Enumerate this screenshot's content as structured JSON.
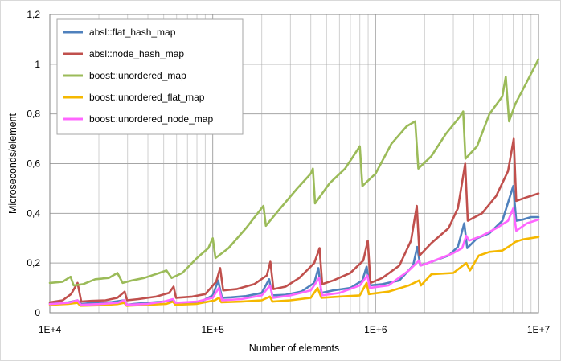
{
  "chart_data": {
    "type": "line",
    "title": "",
    "xlabel": "Number of elements",
    "ylabel": "Microseconds/element",
    "xscale": "log",
    "xlim": [
      10000,
      10000000
    ],
    "ylim": [
      0,
      1.2
    ],
    "x_ticks": [
      10000,
      100000,
      1000000,
      10000000
    ],
    "x_tick_labels": [
      "1E+4",
      "1E+5",
      "1E+6",
      "1E+7"
    ],
    "y_ticks": [
      0,
      0.2,
      0.4,
      0.6,
      0.8,
      1.0,
      1.2
    ],
    "y_tick_labels": [
      "0",
      "0,2",
      "0,4",
      "0,6",
      "0,8",
      "1",
      "1,2"
    ],
    "grid": {
      "major_y": true,
      "major_x": true,
      "minor_x": true
    },
    "legend_position": "top-left",
    "series": [
      {
        "name": "absl::flat_hash_map",
        "color": "#4F81BD",
        "points": [
          [
            10000,
            0.038
          ],
          [
            13000,
            0.042
          ],
          [
            14800,
            0.05
          ],
          [
            15600,
            0.035
          ],
          [
            17000,
            0.038
          ],
          [
            20000,
            0.04
          ],
          [
            24000,
            0.043
          ],
          [
            28500,
            0.05
          ],
          [
            29800,
            0.032
          ],
          [
            33000,
            0.036
          ],
          [
            40000,
            0.04
          ],
          [
            50000,
            0.045
          ],
          [
            56000,
            0.05
          ],
          [
            59000,
            0.038
          ],
          [
            70000,
            0.04
          ],
          [
            85000,
            0.045
          ],
          [
            100000,
            0.07
          ],
          [
            108000,
            0.13
          ],
          [
            114000,
            0.06
          ],
          [
            130000,
            0.062
          ],
          [
            160000,
            0.067
          ],
          [
            200000,
            0.08
          ],
          [
            222000,
            0.135
          ],
          [
            232000,
            0.07
          ],
          [
            280000,
            0.072
          ],
          [
            350000,
            0.085
          ],
          [
            420000,
            0.12
          ],
          [
            445000,
            0.18
          ],
          [
            465000,
            0.08
          ],
          [
            550000,
            0.09
          ],
          [
            700000,
            0.1
          ],
          [
            830000,
            0.13
          ],
          [
            880000,
            0.185
          ],
          [
            920000,
            0.11
          ],
          [
            1100000,
            0.115
          ],
          [
            1400000,
            0.13
          ],
          [
            1700000,
            0.19
          ],
          [
            1800000,
            0.265
          ],
          [
            1880000,
            0.19
          ],
          [
            2200000,
            0.205
          ],
          [
            2800000,
            0.23
          ],
          [
            3200000,
            0.265
          ],
          [
            3500000,
            0.36
          ],
          [
            3650000,
            0.26
          ],
          [
            4200000,
            0.3
          ],
          [
            5000000,
            0.32
          ],
          [
            6000000,
            0.37
          ],
          [
            7000000,
            0.51
          ],
          [
            7300000,
            0.37
          ],
          [
            8000000,
            0.375
          ],
          [
            9000000,
            0.385
          ],
          [
            10000000,
            0.385
          ]
        ]
      },
      {
        "name": "absl::node_hash_map",
        "color": "#C0504D",
        "points": [
          [
            10000,
            0.042
          ],
          [
            12000,
            0.05
          ],
          [
            13500,
            0.075
          ],
          [
            14800,
            0.12
          ],
          [
            15600,
            0.045
          ],
          [
            18000,
            0.048
          ],
          [
            22000,
            0.05
          ],
          [
            26000,
            0.06
          ],
          [
            28800,
            0.085
          ],
          [
            29800,
            0.05
          ],
          [
            35000,
            0.055
          ],
          [
            45000,
            0.065
          ],
          [
            54000,
            0.08
          ],
          [
            57500,
            0.105
          ],
          [
            59500,
            0.06
          ],
          [
            75000,
            0.065
          ],
          [
            90000,
            0.075
          ],
          [
            105000,
            0.125
          ],
          [
            111000,
            0.18
          ],
          [
            116000,
            0.09
          ],
          [
            140000,
            0.095
          ],
          [
            180000,
            0.115
          ],
          [
            215000,
            0.15
          ],
          [
            226000,
            0.205
          ],
          [
            236000,
            0.095
          ],
          [
            280000,
            0.105
          ],
          [
            340000,
            0.14
          ],
          [
            420000,
            0.2
          ],
          [
            453000,
            0.26
          ],
          [
            470000,
            0.115
          ],
          [
            550000,
            0.13
          ],
          [
            700000,
            0.16
          ],
          [
            840000,
            0.21
          ],
          [
            895000,
            0.29
          ],
          [
            930000,
            0.12
          ],
          [
            1100000,
            0.14
          ],
          [
            1400000,
            0.19
          ],
          [
            1650000,
            0.29
          ],
          [
            1790000,
            0.43
          ],
          [
            1860000,
            0.23
          ],
          [
            2200000,
            0.28
          ],
          [
            2800000,
            0.34
          ],
          [
            3200000,
            0.42
          ],
          [
            3550000,
            0.6
          ],
          [
            3680000,
            0.37
          ],
          [
            4500000,
            0.4
          ],
          [
            5500000,
            0.47
          ],
          [
            6500000,
            0.57
          ],
          [
            7050000,
            0.7
          ],
          [
            7300000,
            0.45
          ],
          [
            8500000,
            0.465
          ],
          [
            10000000,
            0.48
          ]
        ]
      },
      {
        "name": "boost::unordered_map",
        "color": "#9BBB59",
        "points": [
          [
            10000,
            0.12
          ],
          [
            12000,
            0.125
          ],
          [
            13400,
            0.145
          ],
          [
            14000,
            0.11
          ],
          [
            16000,
            0.115
          ],
          [
            19000,
            0.135
          ],
          [
            23000,
            0.14
          ],
          [
            26000,
            0.16
          ],
          [
            28000,
            0.12
          ],
          [
            32000,
            0.13
          ],
          [
            38000,
            0.14
          ],
          [
            47000,
            0.16
          ],
          [
            52000,
            0.17
          ],
          [
            56000,
            0.14
          ],
          [
            65000,
            0.16
          ],
          [
            80000,
            0.22
          ],
          [
            94000,
            0.26
          ],
          [
            100000,
            0.3
          ],
          [
            104000,
            0.22
          ],
          [
            125000,
            0.26
          ],
          [
            160000,
            0.34
          ],
          [
            205000,
            0.43
          ],
          [
            212000,
            0.35
          ],
          [
            260000,
            0.42
          ],
          [
            330000,
            0.5
          ],
          [
            400000,
            0.56
          ],
          [
            412000,
            0.58
          ],
          [
            425000,
            0.44
          ],
          [
            520000,
            0.52
          ],
          [
            650000,
            0.58
          ],
          [
            800000,
            0.67
          ],
          [
            830000,
            0.51
          ],
          [
            1000000,
            0.56
          ],
          [
            1250000,
            0.68
          ],
          [
            1550000,
            0.75
          ],
          [
            1750000,
            0.77
          ],
          [
            1830000,
            0.58
          ],
          [
            2200000,
            0.63
          ],
          [
            2700000,
            0.72
          ],
          [
            3300000,
            0.79
          ],
          [
            3450000,
            0.81
          ],
          [
            3560000,
            0.62
          ],
          [
            4200000,
            0.67
          ],
          [
            5000000,
            0.8
          ],
          [
            6000000,
            0.87
          ],
          [
            6300000,
            0.95
          ],
          [
            6600000,
            0.77
          ],
          [
            7200000,
            0.84
          ],
          [
            8200000,
            0.91
          ],
          [
            10000000,
            1.02
          ]
        ]
      },
      {
        "name": "boost::unordered_flat_map",
        "color": "#F5B800",
        "points": [
          [
            10000,
            0.032
          ],
          [
            13000,
            0.036
          ],
          [
            14800,
            0.04
          ],
          [
            15400,
            0.028
          ],
          [
            20000,
            0.03
          ],
          [
            26000,
            0.035
          ],
          [
            28600,
            0.04
          ],
          [
            29600,
            0.028
          ],
          [
            40000,
            0.032
          ],
          [
            52000,
            0.036
          ],
          [
            57000,
            0.045
          ],
          [
            59000,
            0.032
          ],
          [
            80000,
            0.036
          ],
          [
            103000,
            0.05
          ],
          [
            109000,
            0.06
          ],
          [
            113000,
            0.042
          ],
          [
            150000,
            0.045
          ],
          [
            200000,
            0.05
          ],
          [
            224000,
            0.065
          ],
          [
            233000,
            0.045
          ],
          [
            300000,
            0.05
          ],
          [
            400000,
            0.06
          ],
          [
            440000,
            0.1
          ],
          [
            465000,
            0.06
          ],
          [
            600000,
            0.065
          ],
          [
            800000,
            0.07
          ],
          [
            880000,
            0.12
          ],
          [
            910000,
            0.075
          ],
          [
            1200000,
            0.085
          ],
          [
            1600000,
            0.11
          ],
          [
            1850000,
            0.13
          ],
          [
            1900000,
            0.11
          ],
          [
            2200000,
            0.155
          ],
          [
            3000000,
            0.16
          ],
          [
            3600000,
            0.2
          ],
          [
            3800000,
            0.17
          ],
          [
            4300000,
            0.23
          ],
          [
            5000000,
            0.245
          ],
          [
            6000000,
            0.25
          ],
          [
            6700000,
            0.27
          ],
          [
            7200000,
            0.285
          ],
          [
            8000000,
            0.295
          ],
          [
            10000000,
            0.305
          ]
        ]
      },
      {
        "name": "boost::unordered_node_map",
        "color": "#FF66FF",
        "points": [
          [
            10000,
            0.035
          ],
          [
            13000,
            0.04
          ],
          [
            14800,
            0.05
          ],
          [
            15500,
            0.032
          ],
          [
            20000,
            0.035
          ],
          [
            26000,
            0.04
          ],
          [
            28700,
            0.05
          ],
          [
            29700,
            0.032
          ],
          [
            40000,
            0.036
          ],
          [
            50000,
            0.045
          ],
          [
            57000,
            0.055
          ],
          [
            59200,
            0.04
          ],
          [
            80000,
            0.045
          ],
          [
            100000,
            0.06
          ],
          [
            109000,
            0.1
          ],
          [
            114000,
            0.05
          ],
          [
            150000,
            0.055
          ],
          [
            200000,
            0.07
          ],
          [
            225000,
            0.11
          ],
          [
            234000,
            0.06
          ],
          [
            300000,
            0.07
          ],
          [
            400000,
            0.09
          ],
          [
            450000,
            0.14
          ],
          [
            470000,
            0.07
          ],
          [
            600000,
            0.08
          ],
          [
            800000,
            0.11
          ],
          [
            890000,
            0.15
          ],
          [
            920000,
            0.1
          ],
          [
            1200000,
            0.11
          ],
          [
            1600000,
            0.17
          ],
          [
            1850000,
            0.21
          ],
          [
            1900000,
            0.19
          ],
          [
            2300000,
            0.21
          ],
          [
            3000000,
            0.24
          ],
          [
            3400000,
            0.26
          ],
          [
            3600000,
            0.31
          ],
          [
            3750000,
            0.29
          ],
          [
            4500000,
            0.31
          ],
          [
            5500000,
            0.34
          ],
          [
            6500000,
            0.37
          ],
          [
            7000000,
            0.42
          ],
          [
            7300000,
            0.33
          ],
          [
            8500000,
            0.36
          ],
          [
            10000000,
            0.375
          ]
        ]
      }
    ]
  }
}
